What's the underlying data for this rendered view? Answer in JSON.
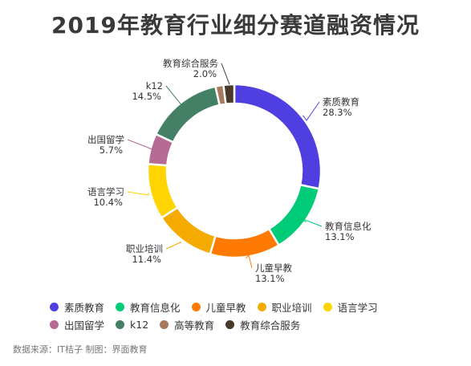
{
  "title": "2019年教育行业细分赛道融资情况",
  "source": "数据来源：IT桔子 制图：界面教育",
  "chart_data": {
    "type": "pie",
    "donut": true,
    "legend_position": "bottom",
    "slices": [
      {
        "label": "素质教育",
        "value": 28.3,
        "display": "28.3%",
        "color": "#4f3fe0"
      },
      {
        "label": "教育信息化",
        "value": 13.1,
        "display": "13.1%",
        "color": "#00cc77"
      },
      {
        "label": "儿童早教",
        "value": 13.1,
        "display": "13.1%",
        "color": "#ff7a00"
      },
      {
        "label": "职业培训",
        "value": 11.4,
        "display": "11.4%",
        "color": "#f5aa00"
      },
      {
        "label": "语言学习",
        "value": 10.4,
        "display": "10.4%",
        "color": "#ffd400"
      },
      {
        "label": "出国留学",
        "value": 5.7,
        "display": "5.7%",
        "color": "#b56b94"
      },
      {
        "label": "k12",
        "value": 14.5,
        "display": "14.5%",
        "color": "#448066"
      },
      {
        "label": "高等教育",
        "value": 1.5,
        "display": "",
        "color": "#a77a5e"
      },
      {
        "label": "教育综合服务",
        "value": 2.0,
        "display": "2.0%",
        "color": "#4a3828"
      }
    ]
  }
}
